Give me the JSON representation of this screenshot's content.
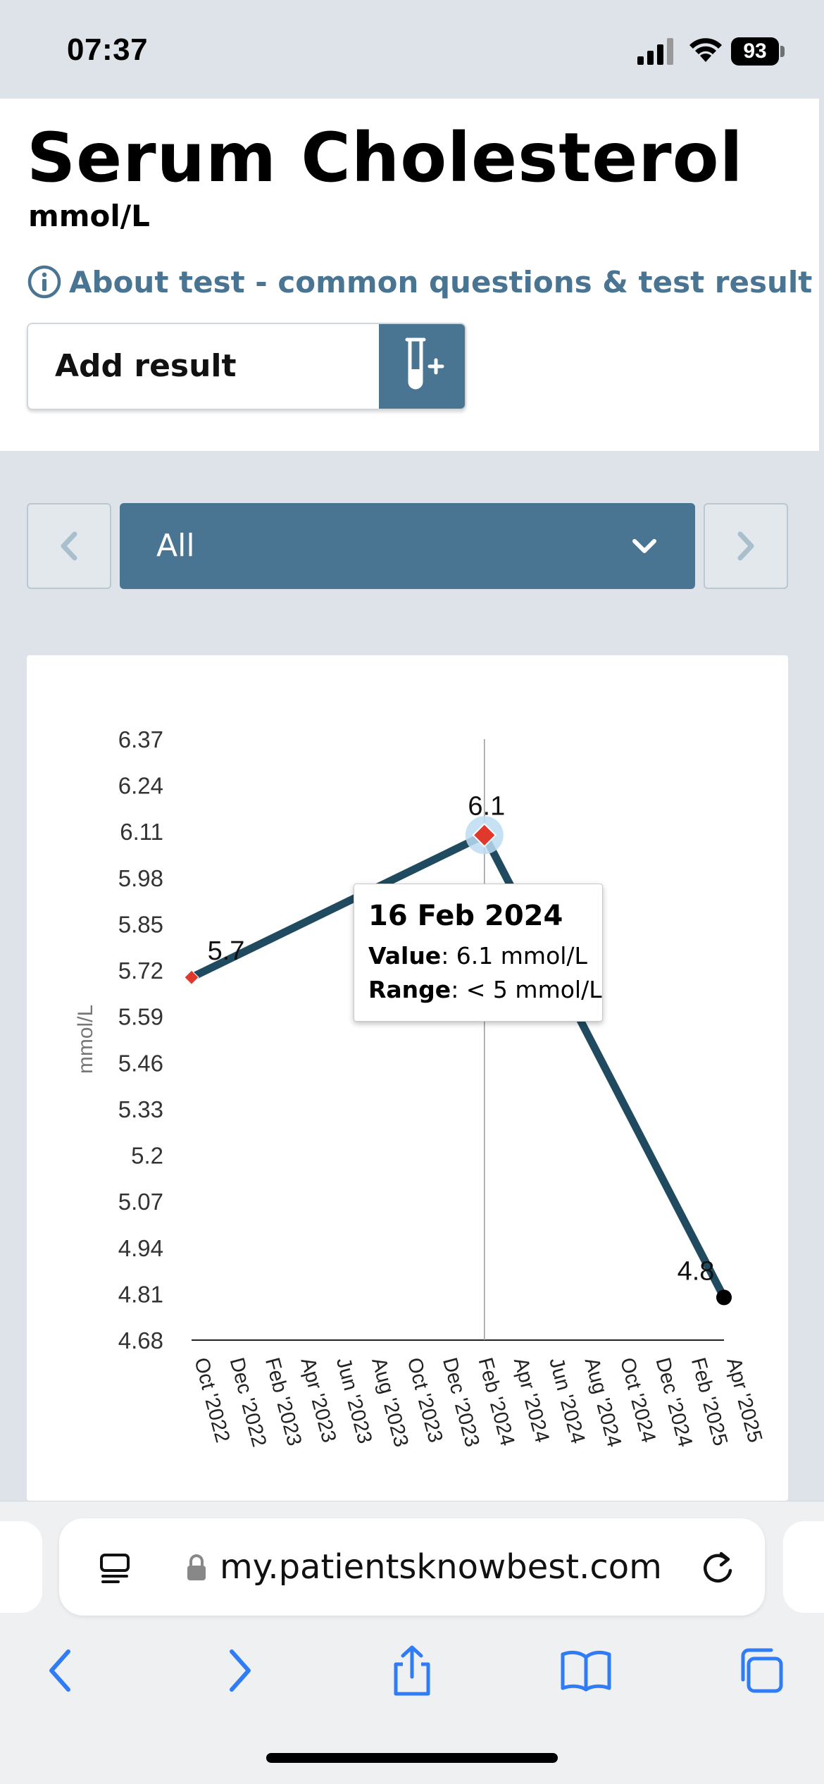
{
  "status_bar": {
    "time": "07:37",
    "battery": "93"
  },
  "header": {
    "title": "Serum Cholesterol",
    "unit": "mmol/L",
    "about_link": "About test - common questions & test result guide",
    "add_result_label": "Add result"
  },
  "range_selector": {
    "selected": "All"
  },
  "tooltip": {
    "date": "16 Feb 2024",
    "value_label": "Value",
    "value_text": ": 6.1 mmol/L",
    "range_label": "Range",
    "range_text": ": < 5 mmol/L"
  },
  "chart_data": {
    "type": "line",
    "ylabel": "mmol/L",
    "xlabel": "",
    "ylim": [
      4.68,
      6.37
    ],
    "y_ticks": [
      "6.37",
      "6.24",
      "6.11",
      "5.98",
      "5.85",
      "5.72",
      "5.59",
      "5.46",
      "5.33",
      "5.2",
      "5.07",
      "4.94",
      "4.81",
      "4.68"
    ],
    "x_ticks": [
      "Oct '2022",
      "Dec '2022",
      "Feb '2023",
      "Apr '2023",
      "Jun '2023",
      "Aug '2023",
      "Oct '2023",
      "Dec '2023",
      "Feb '2024",
      "Apr '2024",
      "Jun '2024",
      "Aug '2024",
      "Oct '2024",
      "Dec '2024",
      "Feb '2025",
      "Apr '2025"
    ],
    "points": [
      {
        "date": "Oct 2022",
        "value": 5.7,
        "label": "5.7",
        "out_of_range": true
      },
      {
        "date": "16 Feb 2024",
        "value": 6.1,
        "label": "6.1",
        "out_of_range": true
      },
      {
        "date": "Apr 2025",
        "value": 4.8,
        "label": "4.8",
        "out_of_range": false
      }
    ],
    "hovered_point": "16 Feb 2024",
    "line_color": "#1f4a5f",
    "out_of_range_color": "#e0382b",
    "in_range_color": "#000000"
  },
  "browser": {
    "url": "my.patientsknowbest.com"
  },
  "colors": {
    "accent": "#4a7592",
    "background": "#dde3e8"
  }
}
